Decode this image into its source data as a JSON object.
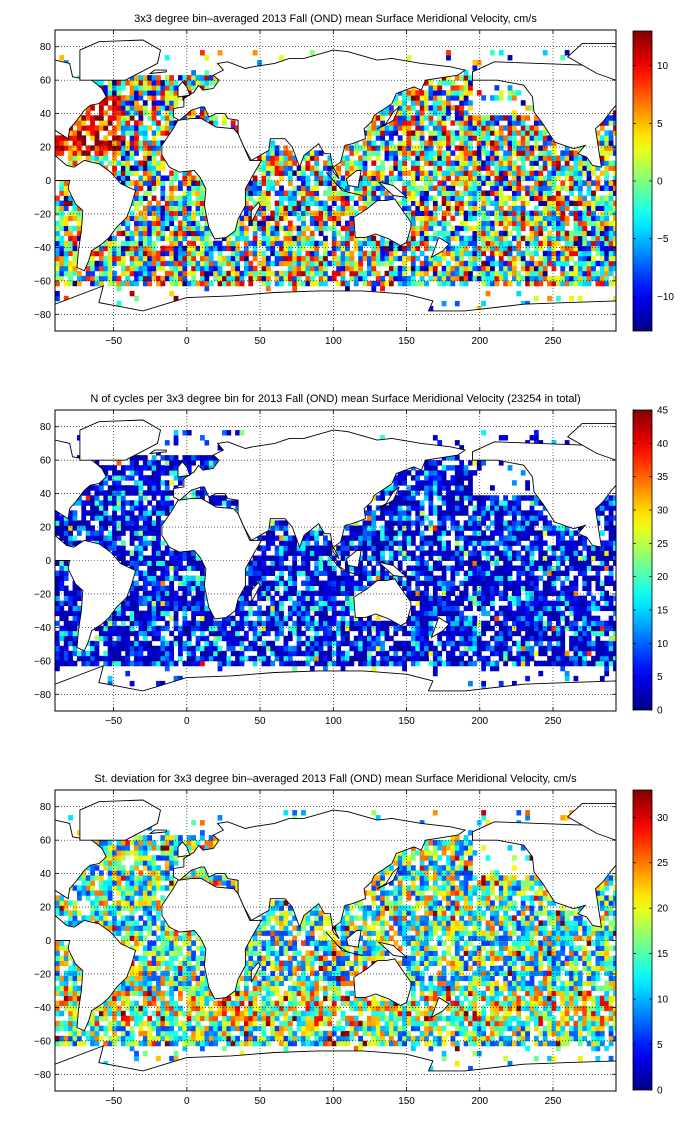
{
  "figure": {
    "background": "#ffffff",
    "panel_background": "#ffffff",
    "text_color": "#000000",
    "grid_style": "dotted",
    "colormap": "jet"
  },
  "chart_data": [
    {
      "type": "heatmap",
      "title": "3x3 degree bin–averaged 2013 Fall (OND) mean Surface Meridional Velocity, cm/s",
      "xlabel": "",
      "ylabel": "",
      "xlim": [
        -90,
        293
      ],
      "ylim": [
        -90,
        90
      ],
      "xticks": [
        -50,
        0,
        50,
        100,
        150,
        200,
        250
      ],
      "yticks": [
        80,
        60,
        40,
        20,
        0,
        -20,
        -40,
        -60,
        -80
      ],
      "grid": true,
      "bin_size_deg": 3,
      "colorbar": {
        "min": -13,
        "max": 13,
        "ticks": [
          10,
          5,
          0,
          -5,
          -10
        ]
      }
    },
    {
      "type": "heatmap",
      "title": "N of cycles per 3x3 degree bin for 2013 Fall (OND) mean Surface Meridional Velocity (23254 in total)",
      "xlabel": "",
      "ylabel": "",
      "xlim": [
        -90,
        293
      ],
      "ylim": [
        -90,
        90
      ],
      "xticks": [
        -50,
        0,
        50,
        100,
        150,
        200,
        250
      ],
      "yticks": [
        80,
        60,
        40,
        20,
        0,
        -20,
        -40,
        -60,
        -80
      ],
      "grid": true,
      "bin_size_deg": 3,
      "total_cycles": 23254,
      "colorbar": {
        "min": 0,
        "max": 45,
        "ticks": [
          45,
          40,
          35,
          30,
          25,
          20,
          15,
          10,
          5,
          0
        ]
      }
    },
    {
      "type": "heatmap",
      "title": "St. deviation for 3x3 degree bin–averaged 2013 Fall (OND) mean Surface Meridional Velocity, cm/s",
      "xlabel": "",
      "ylabel": "",
      "xlim": [
        -90,
        293
      ],
      "ylim": [
        -90,
        90
      ],
      "xticks": [
        -50,
        0,
        50,
        100,
        150,
        200,
        250
      ],
      "yticks": [
        80,
        60,
        40,
        20,
        0,
        -20,
        -40,
        -60,
        -80
      ],
      "grid": true,
      "bin_size_deg": 3,
      "colorbar": {
        "min": 0,
        "max": 33,
        "ticks": [
          30,
          25,
          20,
          15,
          10,
          5,
          0
        ]
      }
    }
  ]
}
